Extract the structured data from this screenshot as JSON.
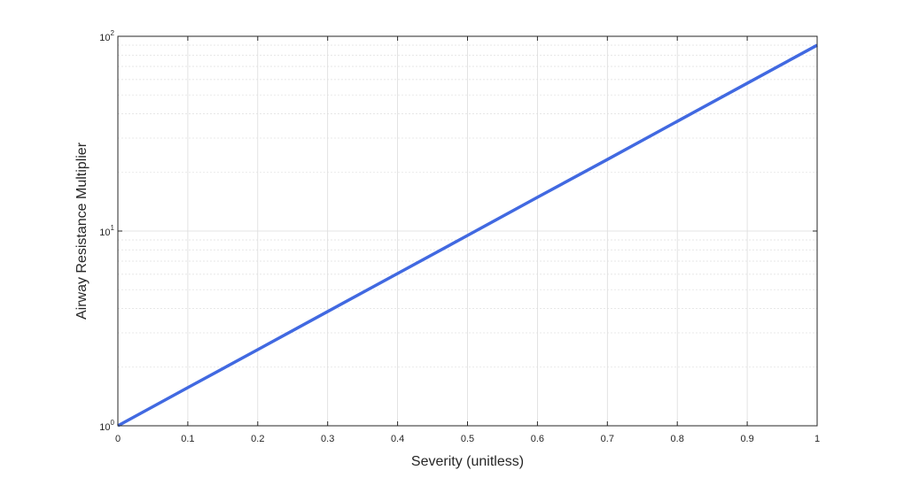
{
  "chart_data": {
    "type": "line",
    "title": "",
    "xlabel": "Severity (unitless)",
    "ylabel": "Airway Resistance Multiplier",
    "xlim": [
      0,
      1
    ],
    "ylim": [
      1,
      100
    ],
    "yscale": "log",
    "grid": true,
    "minor_grid": true,
    "x_ticks": [
      0,
      0.1,
      0.2,
      0.3,
      0.4,
      0.5,
      0.6,
      0.7,
      0.8,
      0.9,
      1
    ],
    "x_tick_labels": [
      "0",
      "0.1",
      "0.2",
      "0.3",
      "0.4",
      "0.5",
      "0.6",
      "0.7",
      "0.8",
      "0.9",
      "1"
    ],
    "y_ticks": [
      1,
      10,
      100
    ],
    "y_tick_labels": [
      {
        "base": "10",
        "exp": "0"
      },
      {
        "base": "10",
        "exp": "1"
      },
      {
        "base": "10",
        "exp": "2"
      }
    ],
    "series": [
      {
        "color": "#4169e1",
        "x": [
          0,
          0.1,
          0.2,
          0.3,
          0.4,
          0.5,
          0.6,
          0.7,
          0.8,
          0.9,
          1
        ],
        "y": [
          1,
          1.57,
          2.46,
          3.86,
          6.05,
          9.49,
          14.9,
          23.3,
          36.6,
          57.4,
          90
        ]
      }
    ]
  }
}
